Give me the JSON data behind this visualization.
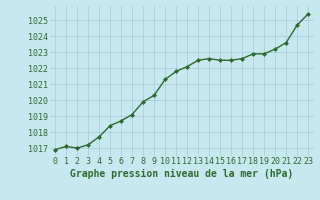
{
  "x": [
    0,
    1,
    2,
    3,
    4,
    5,
    6,
    7,
    8,
    9,
    10,
    11,
    12,
    13,
    14,
    15,
    16,
    17,
    18,
    19,
    20,
    21,
    22,
    23
  ],
  "y": [
    1016.9,
    1017.1,
    1017.0,
    1017.2,
    1017.7,
    1018.4,
    1018.7,
    1019.1,
    1019.9,
    1020.3,
    1021.3,
    1021.8,
    1022.1,
    1022.5,
    1022.6,
    1022.5,
    1022.5,
    1022.6,
    1022.9,
    1022.9,
    1023.2,
    1023.6,
    1024.7,
    1025.4
  ],
  "line_color": "#2d6a2d",
  "marker": "D",
  "marker_size": 2.0,
  "bg_color": "#c8e8f0",
  "grid_color": "#a8c8d8",
  "ylabel_ticks": [
    1017,
    1018,
    1019,
    1020,
    1021,
    1022,
    1023,
    1024,
    1025
  ],
  "ylim": [
    1016.5,
    1025.9
  ],
  "xlim": [
    -0.5,
    23.5
  ],
  "xlabel": "Graphe pression niveau de la mer (hPa)",
  "xlabel_fontsize": 7,
  "tick_fontsize": 6,
  "line_width": 1.0
}
